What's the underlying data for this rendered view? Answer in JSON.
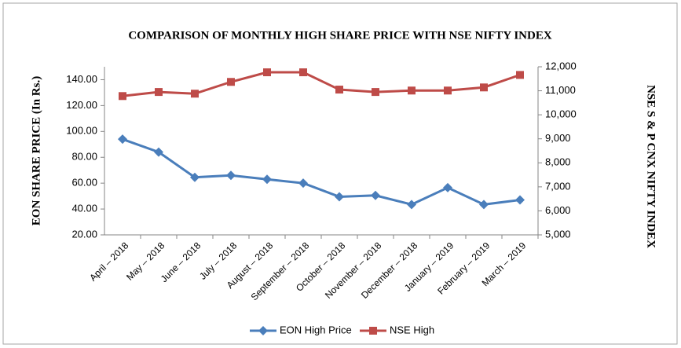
{
  "chart_data": {
    "type": "line",
    "title": "COMPARISON OF MONTHLY HIGH SHARE PRICE WITH NSE NIFTY INDEX",
    "y_label": "EON SHARE PRICE (In Rs.)",
    "y2_label": "NSE S & P CNX NIFTY INDEX",
    "categories": [
      "April – 2018",
      "May – 2018",
      "June – 2018",
      "July – 2018",
      "August – 2018",
      "September – 2018",
      "October – 2018",
      "November – 2018",
      "December – 2018",
      "January – 2019",
      "February – 2019",
      "March – 2019"
    ],
    "series": [
      {
        "name": "EON High Price",
        "color": "#4a7ebb",
        "marker": "diamond",
        "values": [
          94,
          84,
          64.5,
          66,
          63,
          60,
          49.5,
          50.5,
          43.5,
          56.5,
          43.5,
          47
        ]
      },
      {
        "name": "NSE High",
        "color": "#be4b48",
        "marker": "square",
        "axis": "y2",
        "values": [
          10780,
          10950,
          10880,
          11370,
          11770,
          11770,
          11050,
          10950,
          11010,
          11010,
          11140,
          11660
        ]
      }
    ],
    "ylim": [
      20,
      150
    ],
    "yticks": [
      {
        "value": 20,
        "label": "20.00"
      },
      {
        "value": 40,
        "label": "40.00"
      },
      {
        "value": 60,
        "label": "60.00"
      },
      {
        "value": 80,
        "label": "80.00"
      },
      {
        "value": 100,
        "label": "100.00"
      },
      {
        "value": 120,
        "label": "120.00"
      },
      {
        "value": 140,
        "label": "140.00"
      }
    ],
    "y2lim": [
      5000,
      12000
    ],
    "y2ticks": [
      {
        "value": 5000,
        "label": "5,000"
      },
      {
        "value": 6000,
        "label": "6,000"
      },
      {
        "value": 7000,
        "label": "7,000"
      },
      {
        "value": 8000,
        "label": "8,000"
      },
      {
        "value": 9000,
        "label": "9,000"
      },
      {
        "value": 10000,
        "label": "10,000"
      },
      {
        "value": 11000,
        "label": "11,000"
      },
      {
        "value": 12000,
        "label": "12,000"
      }
    ],
    "grid": false,
    "legend": "bottom"
  }
}
